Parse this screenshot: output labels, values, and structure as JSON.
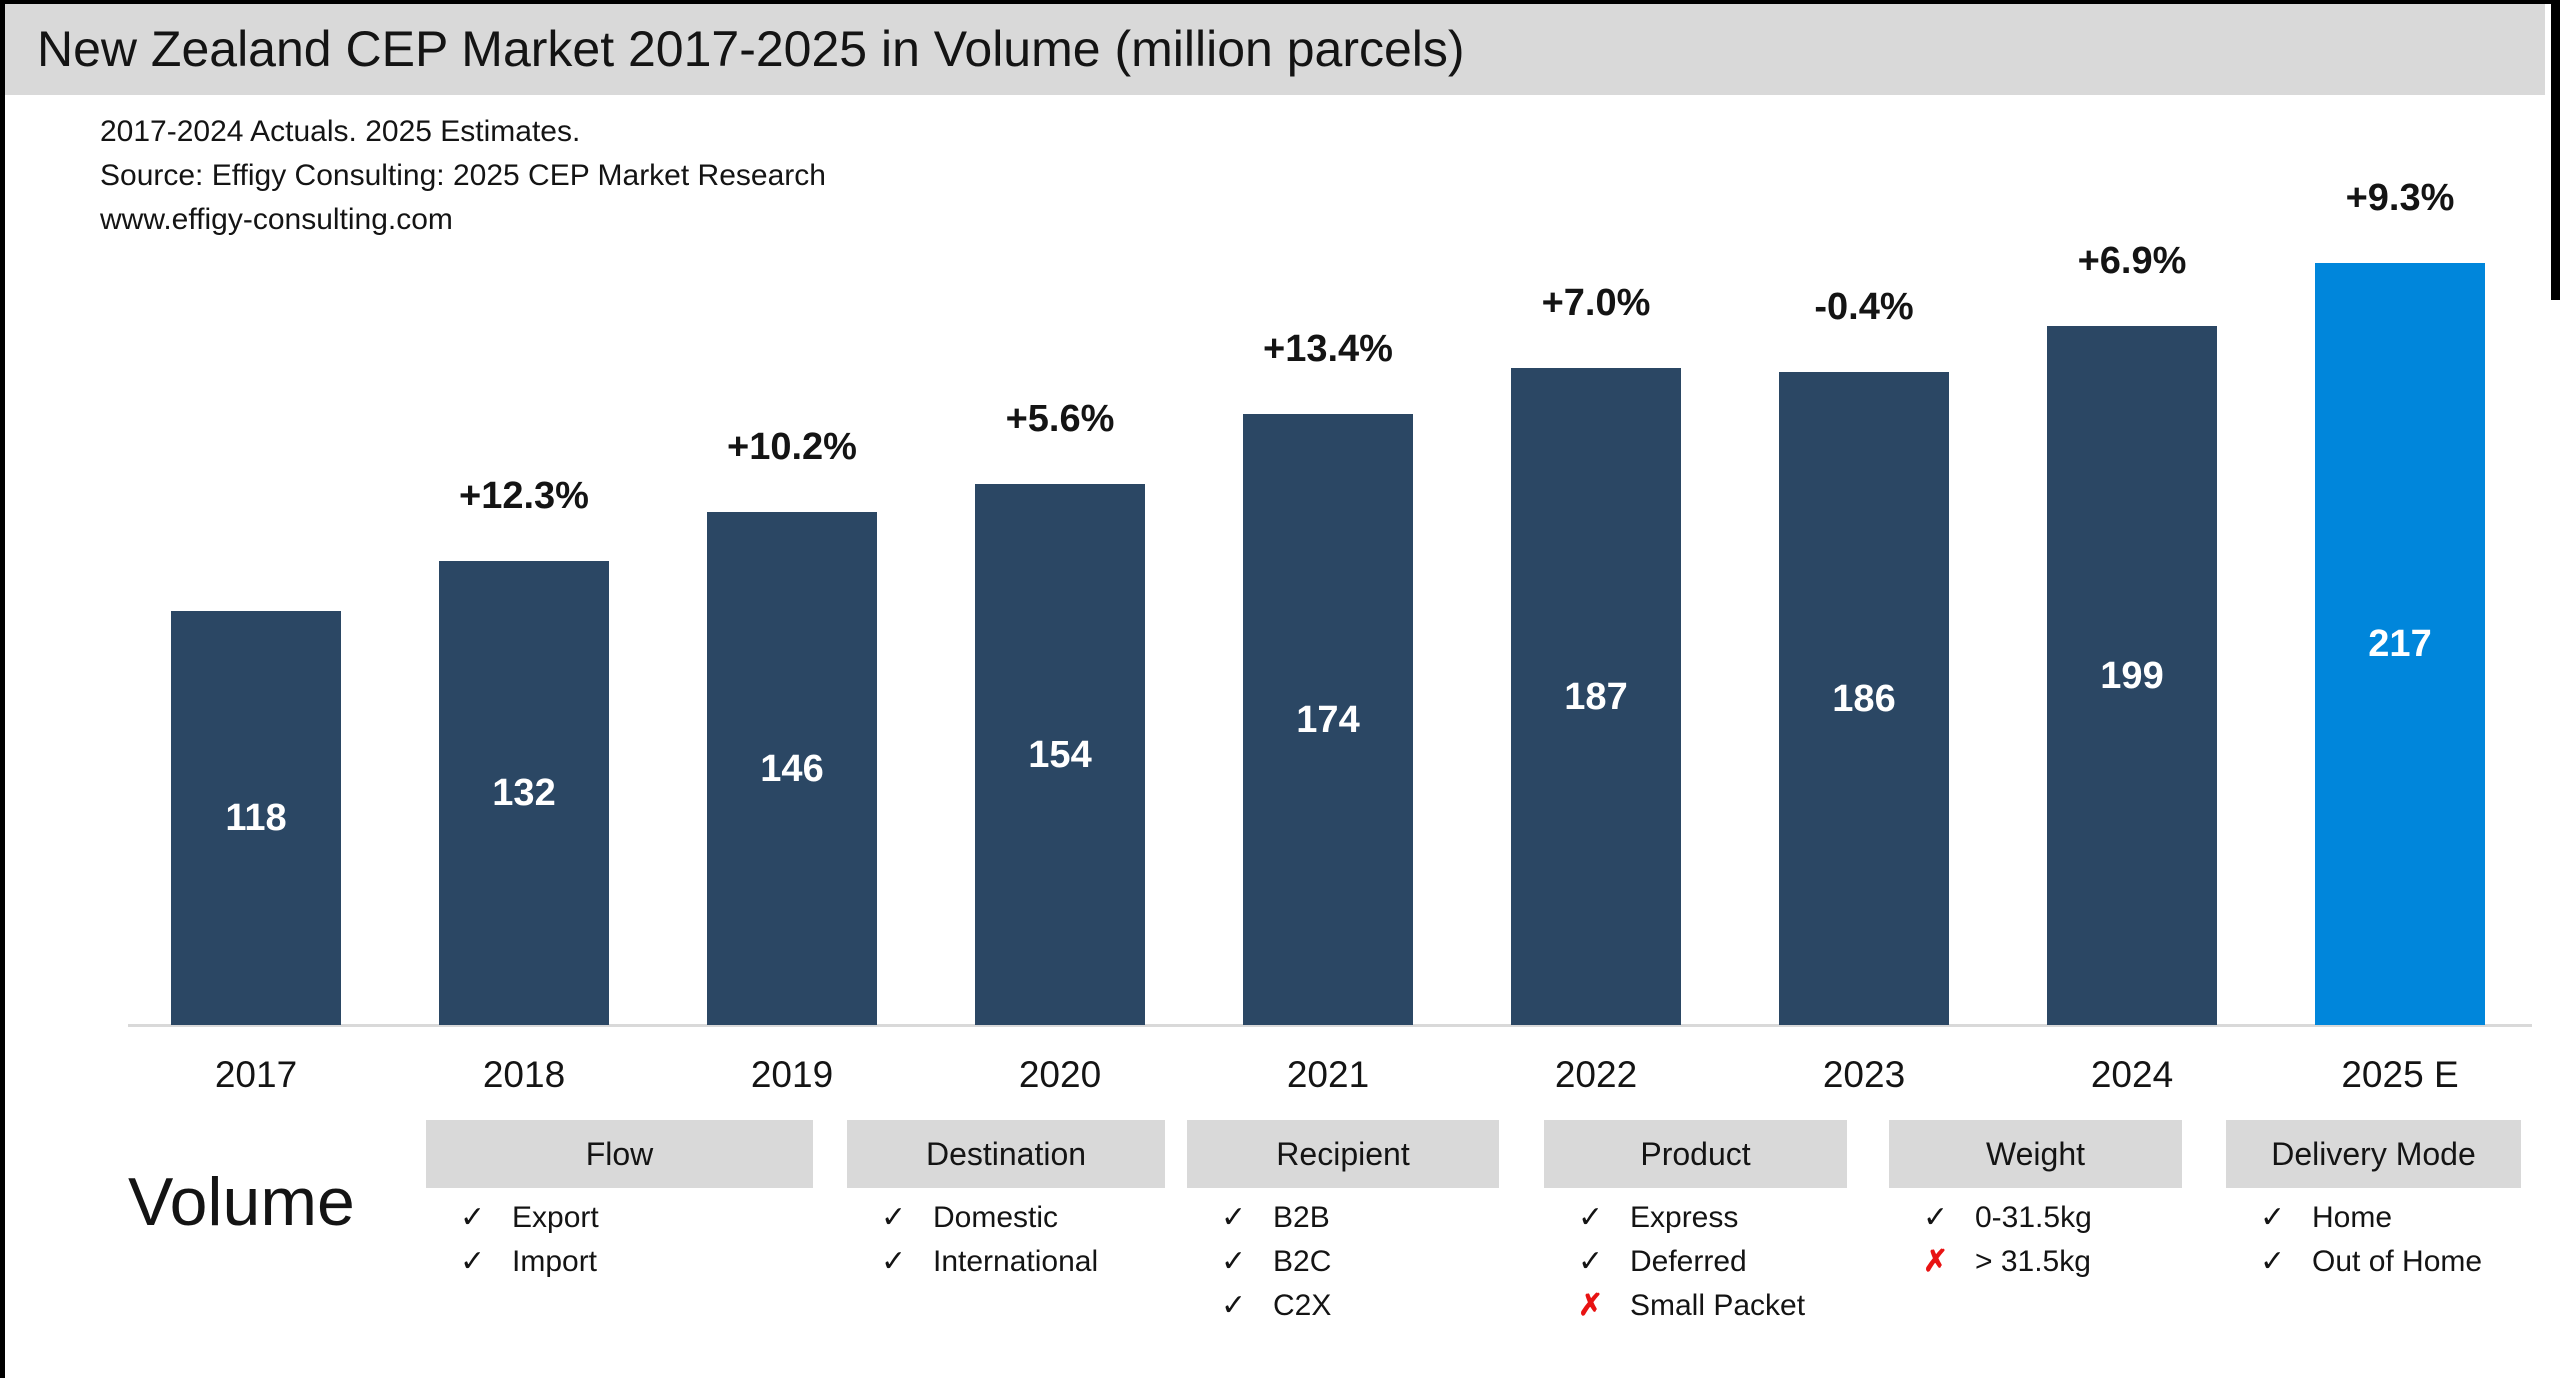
{
  "title_bar": {
    "title": "New Zealand CEP Market 2017-2025 in Volume (million parcels)"
  },
  "annotations": {
    "line1": "2017-2024 Actuals. 2025 Estimates.",
    "line2": "Source: Effigy Consulting: 2025 CEP Market Research",
    "line3": "www.effigy-consulting.com"
  },
  "left_axis_title": "Volume",
  "colors": {
    "bar_default": "#2b4764",
    "bar_estimate": "#0086db",
    "banner_bg": "#d9d9d9",
    "filter_header_bg": "#d9d9d9",
    "check": "#141414",
    "cross": "#e81313",
    "axis_line": "#d9d9d9"
  },
  "chart_data": {
    "type": "bar",
    "title": "New Zealand CEP Market 2017-2025 in Volume (million parcels)",
    "categories": [
      "2017",
      "2018",
      "2019",
      "2020",
      "2021",
      "2022",
      "2023",
      "2024",
      "2025 E"
    ],
    "values": [
      118,
      132,
      146,
      154,
      174,
      187,
      186,
      199,
      217
    ],
    "growth_labels": [
      "",
      "+12.3%",
      "+10.2%",
      "+5.6%",
      "+13.4%",
      "+7.0%",
      "-0.4%",
      "+6.9%",
      "+9.3%"
    ],
    "unit": "million parcels",
    "highlight_index": 8,
    "ylim": [
      0,
      230
    ],
    "grid": false,
    "legend": false,
    "note": "2017-2024 Actuals. 2025 Estimates."
  },
  "filters": [
    {
      "label": "Flow",
      "items": [
        {
          "mark": "check-icon",
          "label": "Export"
        },
        {
          "mark": "check-icon",
          "label": "Import"
        }
      ]
    },
    {
      "label": "Destination",
      "items": [
        {
          "mark": "check-icon",
          "label": "Domestic"
        },
        {
          "mark": "check-icon",
          "label": "International"
        }
      ]
    },
    {
      "label": "Recipient",
      "items": [
        {
          "mark": "check-icon",
          "label": "B2B"
        },
        {
          "mark": "check-icon",
          "label": "B2C"
        },
        {
          "mark": "check-icon",
          "label": "C2X"
        }
      ]
    },
    {
      "label": "Product",
      "items": [
        {
          "mark": "check-icon",
          "label": "Express"
        },
        {
          "mark": "check-icon",
          "label": "Deferred"
        },
        {
          "mark": "cross-icon",
          "label": "Small Packet"
        }
      ]
    },
    {
      "label": "Weight",
      "items": [
        {
          "mark": "check-icon",
          "label": "0-31.5kg"
        },
        {
          "mark": "cross-icon",
          "label": "> 31.5kg"
        }
      ]
    },
    {
      "label": "Delivery Mode",
      "items": [
        {
          "mark": "check-icon",
          "label": "Home"
        },
        {
          "mark": "check-icon",
          "label": "Out of Home"
        }
      ]
    }
  ]
}
